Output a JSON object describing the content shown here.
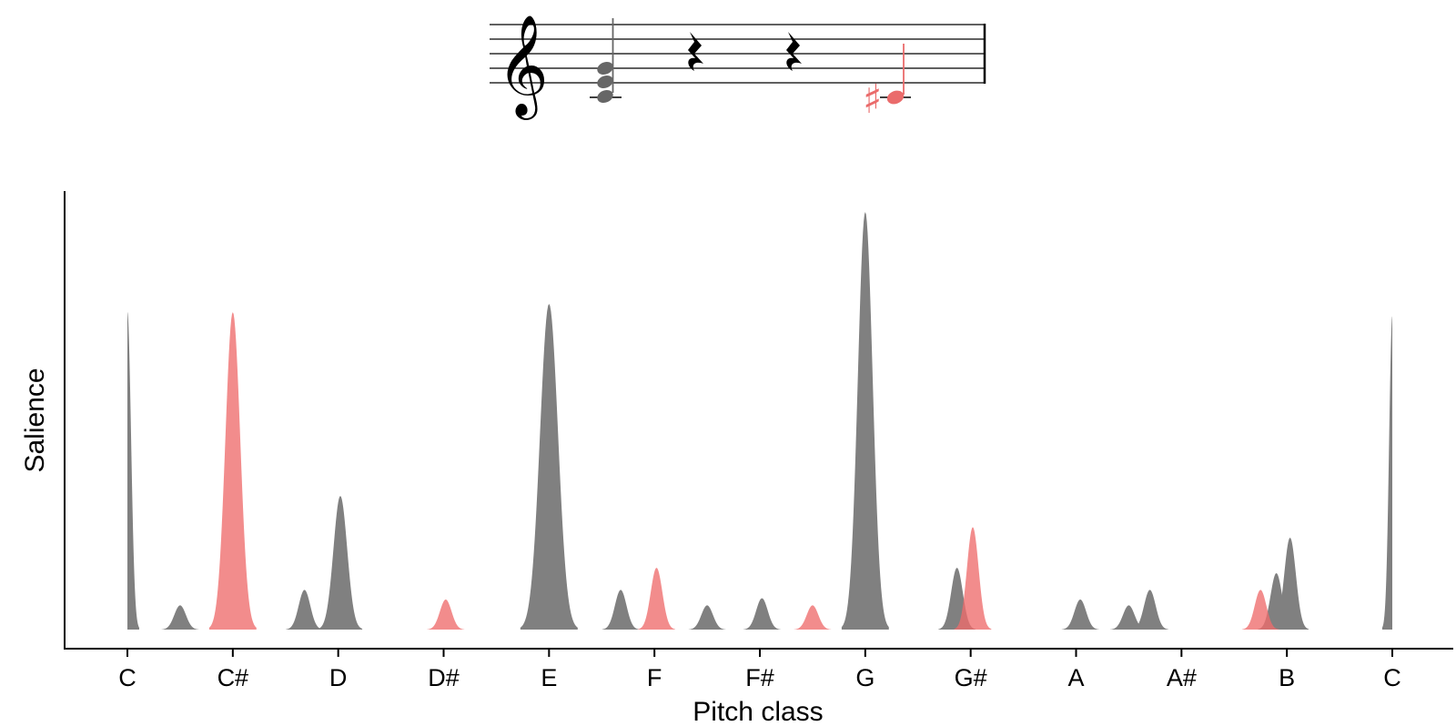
{
  "chart_data": {
    "type": "area",
    "xlabel": "Pitch class",
    "ylabel": "Salience",
    "x_tick_labels": [
      "C",
      "C#",
      "D",
      "D#",
      "E",
      "F",
      "F#",
      "G",
      "G#",
      "A",
      "A#",
      "B",
      "C"
    ],
    "xlim": [
      0,
      12
    ],
    "ylim": [
      0,
      1.0
    ],
    "y_ticks_shown": false,
    "grid": false,
    "legend": "none",
    "series": [
      {
        "color": "#808080",
        "opacity": 1.0,
        "peaks": [
          {
            "x": 0.0,
            "height": 0.76,
            "width": 0.035,
            "half": "right"
          },
          {
            "x": 0.5,
            "height": 0.058,
            "width": 0.055
          },
          {
            "x": 1.68,
            "height": 0.095,
            "width": 0.055
          },
          {
            "x": 2.02,
            "height": 0.32,
            "width": 0.065
          },
          {
            "x": 4.0,
            "height": 0.78,
            "width": 0.085
          },
          {
            "x": 4.68,
            "height": 0.095,
            "width": 0.055
          },
          {
            "x": 5.5,
            "height": 0.058,
            "width": 0.055
          },
          {
            "x": 6.02,
            "height": 0.075,
            "width": 0.055
          },
          {
            "x": 7.0,
            "height": 1.0,
            "width": 0.07
          },
          {
            "x": 7.87,
            "height": 0.148,
            "width": 0.055
          },
          {
            "x": 9.04,
            "height": 0.072,
            "width": 0.055
          },
          {
            "x": 9.5,
            "height": 0.058,
            "width": 0.055
          },
          {
            "x": 9.7,
            "height": 0.095,
            "width": 0.055
          },
          {
            "x": 10.9,
            "height": 0.135,
            "width": 0.055
          },
          {
            "x": 11.03,
            "height": 0.22,
            "width": 0.055
          },
          {
            "x": 12.0,
            "height": 0.75,
            "width": 0.03,
            "half": "left"
          }
        ]
      },
      {
        "color": "#ee6b6b",
        "opacity": 0.78,
        "peaks": [
          {
            "x": 1.0,
            "height": 0.76,
            "width": 0.07
          },
          {
            "x": 3.02,
            "height": 0.072,
            "width": 0.055
          },
          {
            "x": 5.02,
            "height": 0.148,
            "width": 0.055
          },
          {
            "x": 6.5,
            "height": 0.058,
            "width": 0.055
          },
          {
            "x": 8.02,
            "height": 0.245,
            "width": 0.055
          },
          {
            "x": 10.75,
            "height": 0.095,
            "width": 0.055
          }
        ]
      }
    ]
  },
  "notation": {
    "clef": "treble",
    "chord_color": "#666666",
    "rest_color": "#000000",
    "accent_note": {
      "accidental": "♯",
      "color": "#ea6b6b"
    }
  }
}
